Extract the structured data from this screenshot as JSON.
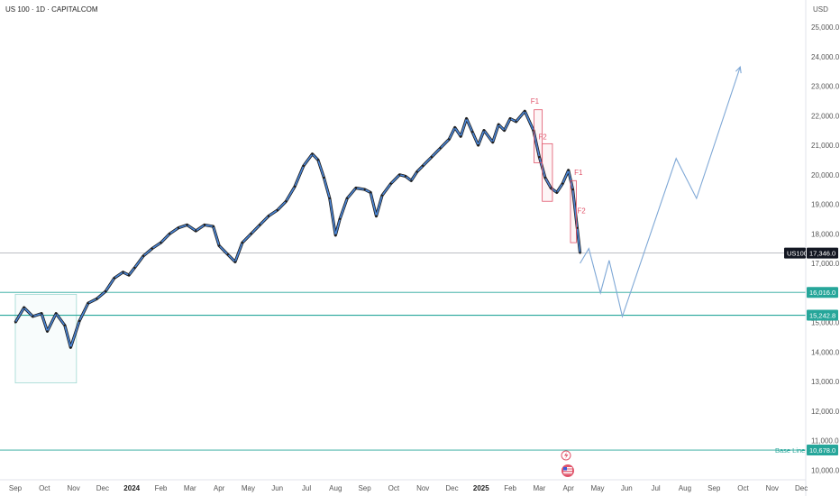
{
  "chart_data": {
    "type": "line",
    "title": "US 100 · 1D · CAPITALCOM",
    "currency": "USD",
    "ylim": [
      10000,
      25500
    ],
    "y_ticks": [
      {
        "v": 25000,
        "label": "25,000.0"
      },
      {
        "v": 24000,
        "label": "24,000.0"
      },
      {
        "v": 23000,
        "label": "23,000.0"
      },
      {
        "v": 22000,
        "label": "22,000.0"
      },
      {
        "v": 21000,
        "label": "21,000.0"
      },
      {
        "v": 20000,
        "label": "20,000.0"
      },
      {
        "v": 19000,
        "label": "19,000.0"
      },
      {
        "v": 18000,
        "label": "18,000.0"
      },
      {
        "v": 17000,
        "label": "17,000.0"
      },
      {
        "v": 15000,
        "label": "15,000.0"
      },
      {
        "v": 14000,
        "label": "14,000.0"
      },
      {
        "v": 13000,
        "label": "13,000.0"
      },
      {
        "v": 12000,
        "label": "12,000.0"
      },
      {
        "v": 11000,
        "label": "11,000.0"
      },
      {
        "v": 10000,
        "label": "10,000.0"
      }
    ],
    "x_ticks": [
      {
        "m": 0,
        "label": "Sep",
        "bold": false
      },
      {
        "m": 1,
        "label": "Oct",
        "bold": false
      },
      {
        "m": 2,
        "label": "Nov",
        "bold": false
      },
      {
        "m": 3,
        "label": "Dec",
        "bold": false
      },
      {
        "m": 4,
        "label": "2024",
        "bold": true
      },
      {
        "m": 5,
        "label": "Feb",
        "bold": false
      },
      {
        "m": 6,
        "label": "Mar",
        "bold": false
      },
      {
        "m": 7,
        "label": "Apr",
        "bold": false
      },
      {
        "m": 8,
        "label": "May",
        "bold": false
      },
      {
        "m": 9,
        "label": "Jun",
        "bold": false
      },
      {
        "m": 10,
        "label": "Jul",
        "bold": false
      },
      {
        "m": 11,
        "label": "Aug",
        "bold": false
      },
      {
        "m": 12,
        "label": "Sep",
        "bold": false
      },
      {
        "m": 13,
        "label": "Oct",
        "bold": false
      },
      {
        "m": 14,
        "label": "Nov",
        "bold": false
      },
      {
        "m": 15,
        "label": "Dec",
        "bold": false
      },
      {
        "m": 16,
        "label": "2025",
        "bold": true
      },
      {
        "m": 17,
        "label": "Feb",
        "bold": false
      },
      {
        "m": 18,
        "label": "Mar",
        "bold": false
      },
      {
        "m": 19,
        "label": "Apr",
        "bold": false
      },
      {
        "m": 20,
        "label": "May",
        "bold": false
      },
      {
        "m": 21,
        "label": "Jun",
        "bold": false
      },
      {
        "m": 22,
        "label": "Jul",
        "bold": false
      },
      {
        "m": 23,
        "label": "Aug",
        "bold": false
      },
      {
        "m": 24,
        "label": "Sep",
        "bold": false
      },
      {
        "m": 25,
        "label": "Oct",
        "bold": false
      },
      {
        "m": 26,
        "label": "Nov",
        "bold": false
      },
      {
        "m": 27,
        "label": "Dec",
        "bold": false
      }
    ],
    "price_series": {
      "name": "US100",
      "points": [
        [
          0,
          15000
        ],
        [
          0.3,
          15500
        ],
        [
          0.6,
          15200
        ],
        [
          0.9,
          15300
        ],
        [
          1.1,
          14700
        ],
        [
          1.4,
          15300
        ],
        [
          1.7,
          14900
        ],
        [
          1.9,
          14150
        ],
        [
          2.2,
          15050
        ],
        [
          2.5,
          15650
        ],
        [
          2.8,
          15800
        ],
        [
          3.1,
          16050
        ],
        [
          3.4,
          16500
        ],
        [
          3.7,
          16700
        ],
        [
          3.9,
          16600
        ],
        [
          4.1,
          16850
        ],
        [
          4.4,
          17250
        ],
        [
          4.7,
          17500
        ],
        [
          5.0,
          17700
        ],
        [
          5.3,
          18000
        ],
        [
          5.6,
          18200
        ],
        [
          5.9,
          18300
        ],
        [
          6.2,
          18100
        ],
        [
          6.5,
          18300
        ],
        [
          6.8,
          18250
        ],
        [
          7.0,
          17600
        ],
        [
          7.3,
          17300
        ],
        [
          7.55,
          17050
        ],
        [
          7.8,
          17700
        ],
        [
          8.1,
          18000
        ],
        [
          8.4,
          18300
        ],
        [
          8.7,
          18600
        ],
        [
          9.0,
          18800
        ],
        [
          9.3,
          19100
        ],
        [
          9.6,
          19600
        ],
        [
          9.9,
          20300
        ],
        [
          10.2,
          20700
        ],
        [
          10.4,
          20500
        ],
        [
          10.6,
          19900
        ],
        [
          10.8,
          19200
        ],
        [
          11.0,
          17950
        ],
        [
          11.15,
          18500
        ],
        [
          11.4,
          19200
        ],
        [
          11.7,
          19550
        ],
        [
          12.0,
          19500
        ],
        [
          12.2,
          19400
        ],
        [
          12.4,
          18600
        ],
        [
          12.6,
          19300
        ],
        [
          12.9,
          19700
        ],
        [
          13.2,
          20000
        ],
        [
          13.4,
          19950
        ],
        [
          13.6,
          19800
        ],
        [
          13.8,
          20100
        ],
        [
          14.0,
          20300
        ],
        [
          14.3,
          20600
        ],
        [
          14.6,
          20900
        ],
        [
          14.9,
          21200
        ],
        [
          15.1,
          21600
        ],
        [
          15.3,
          21300
        ],
        [
          15.5,
          21900
        ],
        [
          15.7,
          21450
        ],
        [
          15.9,
          21000
        ],
        [
          16.1,
          21500
        ],
        [
          16.4,
          21100
        ],
        [
          16.6,
          21700
        ],
        [
          16.8,
          21500
        ],
        [
          17.0,
          21900
        ],
        [
          17.2,
          21800
        ],
        [
          17.5,
          22150
        ],
        [
          17.8,
          21500
        ],
        [
          18.0,
          20600
        ],
        [
          18.2,
          19900
        ],
        [
          18.4,
          19550
        ],
        [
          18.6,
          19400
        ],
        [
          18.8,
          19700
        ],
        [
          19.0,
          20150
        ],
        [
          19.15,
          19500
        ],
        [
          19.3,
          18200
        ],
        [
          19.4,
          17350
        ]
      ]
    },
    "projection": {
      "points": [
        [
          19.4,
          17000
        ],
        [
          19.7,
          17500
        ],
        [
          20.1,
          16000
        ],
        [
          20.4,
          17100
        ],
        [
          20.85,
          15200
        ],
        [
          22.7,
          20550
        ],
        [
          23.4,
          19200
        ],
        [
          24.9,
          23650
        ]
      ]
    },
    "current_price": {
      "symbol": "US100",
      "value": 17346,
      "label": "17,346.0"
    },
    "levels": [
      {
        "value": 16016,
        "label": "16,016.0"
      },
      {
        "value": 15242.8,
        "label": "15,242.8"
      }
    ],
    "base_line": {
      "name": "Base Line",
      "value": 10678,
      "label": "10,678.0"
    },
    "annotations": [
      {
        "text": "F1",
        "m": 17.7,
        "v": 22400
      },
      {
        "text": "F2",
        "m": 17.97,
        "v": 21200
      },
      {
        "text": "F1",
        "m": 19.2,
        "v": 20000
      },
      {
        "text": "F2",
        "m": 19.3,
        "v": 18700
      }
    ],
    "rects": [
      {
        "m0": 17.82,
        "m1": 18.1,
        "v0": 20400,
        "v1": 22200
      },
      {
        "m0": 18.1,
        "m1": 18.45,
        "v0": 19100,
        "v1": 21050
      },
      {
        "m0": 19.07,
        "m1": 19.27,
        "v0": 17700,
        "v1": 19800
      }
    ],
    "zone": {
      "m0": 0,
      "m1": 2.1,
      "v0": 12950,
      "v1": 15950
    },
    "grid": false
  }
}
